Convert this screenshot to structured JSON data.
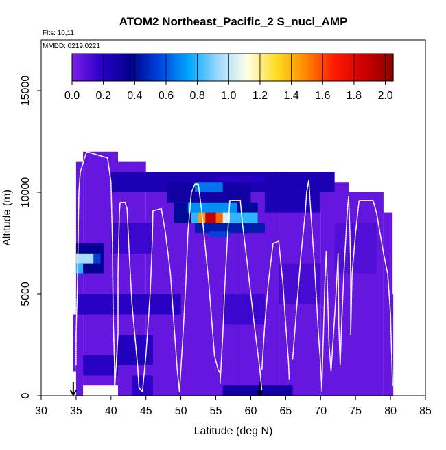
{
  "chart_data": {
    "type": "heatmap",
    "title": "ATOM2 Northeast_Pacific_2 S_nucl_AMP",
    "flights_label": "Flts: 10,11",
    "date_label": "MMDD: 0219,0221",
    "xlabel": "Latitude (deg N)",
    "ylabel": "Altitude (m)",
    "xlim": [
      30,
      85
    ],
    "ylim": [
      0,
      17500
    ],
    "x_ticks": [
      30,
      35,
      40,
      45,
      50,
      55,
      60,
      65,
      70,
      75,
      80,
      85
    ],
    "x_tick_labels": [
      "30",
      "35",
      "40",
      "45",
      "50",
      "55",
      "60",
      "65",
      "70",
      "75",
      "80",
      "85"
    ],
    "y_ticks": [
      0,
      5000,
      10000,
      15000
    ],
    "y_tick_labels": [
      "0",
      "5000",
      "10000",
      "15000"
    ],
    "colorbar": {
      "min": 0.0,
      "max": 2.05,
      "ticks": [
        0.0,
        0.2,
        0.4,
        0.6,
        0.8,
        1.0,
        1.2,
        1.4,
        1.6,
        1.8,
        2.0
      ],
      "tick_labels": [
        "0.0",
        "0.2",
        "0.4",
        "0.6",
        "0.8",
        "1.0",
        "1.2",
        "1.4",
        "1.6",
        "1.8",
        "2.0"
      ],
      "colors": [
        "#7b1fe8",
        "#2b00c8",
        "#00008b",
        "#0044dd",
        "#00a6ff",
        "#9ed8ff",
        "#ffffe8",
        "#ffdd22",
        "#ff8800",
        "#ff1a00",
        "#cc0000",
        "#8b0000"
      ]
    },
    "background_value": 0.05,
    "cell_height_m": 500,
    "coverage": [
      {
        "x0": 35.0,
        "x1": 36.0,
        "y0": 0,
        "y1": 11500
      },
      {
        "x0": 34.6,
        "x1": 35.0,
        "y0": 1200,
        "y1": 4000
      },
      {
        "x0": 36.0,
        "x1": 41.0,
        "y0": 500,
        "y1": 12000
      },
      {
        "x0": 41.0,
        "x1": 45.0,
        "y0": 0,
        "y1": 11500
      },
      {
        "x0": 45.0,
        "x1": 52.0,
        "y0": 0,
        "y1": 11000
      },
      {
        "x0": 52.0,
        "x1": 58.0,
        "y0": 0,
        "y1": 11000
      },
      {
        "x0": 58.0,
        "x1": 64.0,
        "y0": 0,
        "y1": 11000
      },
      {
        "x0": 64.0,
        "x1": 70.0,
        "y0": 0,
        "y1": 10800
      },
      {
        "x0": 70.0,
        "x1": 74.0,
        "y0": 0,
        "y1": 10500
      },
      {
        "x0": 74.0,
        "x1": 79.0,
        "y0": 0,
        "y1": 10000
      },
      {
        "x0": 79.0,
        "x1": 80.3,
        "y0": 0,
        "y1": 9000
      },
      {
        "x0": 80.0,
        "x1": 80.4,
        "y0": 0,
        "y1": 5000
      }
    ],
    "features": [
      {
        "x0": 35.0,
        "x1": 39.0,
        "y0": 6000,
        "y1": 7500,
        "value": 0.35
      },
      {
        "x0": 35.0,
        "x1": 37.5,
        "y0": 6500,
        "y1": 7000,
        "value": 0.95
      },
      {
        "x0": 35.0,
        "x1": 36.0,
        "y0": 6000,
        "y1": 6500,
        "value": 0.8
      },
      {
        "x0": 37.5,
        "x1": 38.5,
        "y0": 6500,
        "y1": 7000,
        "value": 0.55
      },
      {
        "x0": 40.0,
        "x1": 72.0,
        "y0": 10000,
        "y1": 11000,
        "value": 0.25
      },
      {
        "x0": 48.0,
        "x1": 60.0,
        "y0": 9500,
        "y1": 10500,
        "value": 0.3
      },
      {
        "x0": 52.0,
        "x1": 56.0,
        "y0": 10000,
        "y1": 10500,
        "value": 0.65
      },
      {
        "x0": 49.0,
        "x1": 61.0,
        "y0": 8500,
        "y1": 9500,
        "value": 0.4
      },
      {
        "x0": 51.0,
        "x1": 58.0,
        "y0": 9000,
        "y1": 9500,
        "value": 0.7
      },
      {
        "x0": 51.5,
        "x1": 61.0,
        "y0": 8500,
        "y1": 9000,
        "value": 0.8
      },
      {
        "x0": 52.5,
        "x1": 53.5,
        "y0": 8500,
        "y1": 9000,
        "value": 1.45
      },
      {
        "x0": 53.5,
        "x1": 55.0,
        "y0": 8500,
        "y1": 9000,
        "value": 1.9
      },
      {
        "x0": 55.0,
        "x1": 56.0,
        "y0": 8500,
        "y1": 9000,
        "value": 1.55
      },
      {
        "x0": 56.0,
        "x1": 57.0,
        "y0": 8500,
        "y1": 9000,
        "value": 1.05
      },
      {
        "x0": 52.0,
        "x1": 62.0,
        "y0": 8000,
        "y1": 8500,
        "value": 0.45
      },
      {
        "x0": 54.0,
        "x1": 57.0,
        "y0": 7800,
        "y1": 8100,
        "value": 0.55
      },
      {
        "x0": 55.0,
        "x1": 62.0,
        "y0": 10500,
        "y1": 10800,
        "value": 0.2
      },
      {
        "x0": 62.0,
        "x1": 70.0,
        "y0": 9000,
        "y1": 10000,
        "value": 0.25
      },
      {
        "x0": 35.0,
        "x1": 50.0,
        "y0": 4000,
        "y1": 5000,
        "value": 0.2
      },
      {
        "x0": 40.0,
        "x1": 46.0,
        "y0": 7000,
        "y1": 8500,
        "value": 0.15
      },
      {
        "x0": 41.0,
        "x1": 46.0,
        "y0": 1500,
        "y1": 3000,
        "value": 0.22
      },
      {
        "x0": 36.0,
        "x1": 41.0,
        "y0": 1000,
        "y1": 2000,
        "value": 0.2
      },
      {
        "x0": 43.0,
        "x1": 46.0,
        "y0": 0,
        "y1": 1000,
        "value": 0.18
      },
      {
        "x0": 56.0,
        "x1": 66.0,
        "y0": 0,
        "y1": 500,
        "value": 0.3
      },
      {
        "x0": 56.0,
        "x1": 62.0,
        "y0": 3500,
        "y1": 5000,
        "value": 0.15
      },
      {
        "x0": 64.0,
        "x1": 70.0,
        "y0": 4500,
        "y1": 6500,
        "value": 0.12
      },
      {
        "x0": 72.0,
        "x1": 78.0,
        "y0": 6000,
        "y1": 8500,
        "value": 0.1
      }
    ],
    "arrows_at_latitude": [
      34.6,
      61.3
    ],
    "flight_track": [
      [
        [
          35.0,
          1500
        ],
        [
          35.0,
          3000
        ],
        [
          35.2,
          5500
        ],
        [
          35.3,
          8000
        ],
        [
          35.4,
          10000
        ],
        [
          35.6,
          11000
        ],
        [
          36.5,
          12000
        ],
        [
          39.5,
          11700
        ],
        [
          40.0,
          10500
        ],
        [
          40.2,
          7500
        ],
        [
          40.3,
          4000
        ],
        [
          40.5,
          1500
        ],
        [
          40.5,
          200
        ]
      ],
      [
        [
          40.5,
          200
        ],
        [
          41.0,
          3000
        ],
        [
          41.0,
          6000
        ],
        [
          41.2,
          9000
        ],
        [
          41.3,
          9500
        ],
        [
          42.0,
          9500
        ],
        [
          42.3,
          9200
        ],
        [
          42.6,
          7000
        ],
        [
          43.0,
          4500
        ],
        [
          43.8,
          1500
        ],
        [
          44.0,
          400
        ],
        [
          44.5,
          200
        ]
      ],
      [
        [
          44.5,
          200
        ],
        [
          45.0,
          2000
        ],
        [
          45.6,
          5000
        ],
        [
          45.9,
          7500
        ],
        [
          46.0,
          9100
        ],
        [
          47.2,
          9200
        ],
        [
          47.8,
          8000
        ],
        [
          48.5,
          6000
        ],
        [
          49.0,
          3500
        ],
        [
          49.5,
          1200
        ],
        [
          49.8,
          200
        ]
      ],
      [
        [
          49.8,
          200
        ],
        [
          50.3,
          3000
        ],
        [
          50.7,
          5500
        ],
        [
          51.0,
          8000
        ],
        [
          51.5,
          10000
        ],
        [
          52.0,
          10400
        ],
        [
          52.5,
          10400
        ],
        [
          53.0,
          9000
        ],
        [
          54.0,
          5500
        ],
        [
          54.8,
          2000
        ],
        [
          55.3,
          1300
        ],
        [
          55.6,
          1100
        ]
      ],
      [
        [
          55.6,
          600
        ],
        [
          56.0,
          3000
        ],
        [
          56.3,
          5500
        ],
        [
          56.7,
          8000
        ],
        [
          57.0,
          9600
        ],
        [
          58.5,
          9600
        ],
        [
          58.8,
          8500
        ],
        [
          59.5,
          6500
        ],
        [
          60.5,
          3500
        ],
        [
          61.3,
          1300
        ],
        [
          61.6,
          200
        ]
      ],
      [
        [
          61.6,
          1300
        ],
        [
          62.0,
          3500
        ],
        [
          62.5,
          5500
        ],
        [
          63.2,
          7500
        ],
        [
          64.0,
          7600
        ],
        [
          64.6,
          5500
        ],
        [
          65.0,
          3500
        ],
        [
          65.4,
          1700
        ],
        [
          65.5,
          800
        ]
      ],
      [
        [
          66.0,
          1800
        ],
        [
          66.5,
          4000
        ],
        [
          67.2,
          7000
        ],
        [
          67.8,
          9000
        ],
        [
          68.0,
          10000
        ],
        [
          68.3,
          10600
        ],
        [
          68.6,
          9000
        ],
        [
          69.2,
          6000
        ],
        [
          69.7,
          3000
        ],
        [
          70.0,
          1500
        ],
        [
          70.2,
          200
        ]
      ],
      [
        [
          70.2,
          700
        ],
        [
          70.4,
          3000
        ],
        [
          70.6,
          5500
        ],
        [
          70.8,
          7100
        ],
        [
          71.0,
          5000
        ],
        [
          71.2,
          2500
        ],
        [
          71.5,
          1200
        ],
        [
          71.8,
          2800
        ],
        [
          72.2,
          5000
        ],
        [
          72.5,
          7000
        ]
      ],
      [
        [
          72.5,
          7000
        ],
        [
          72.6,
          3500
        ],
        [
          72.8,
          1500
        ],
        [
          73.0,
          3500
        ],
        [
          73.4,
          6500
        ],
        [
          73.8,
          9000
        ],
        [
          74.0,
          9800
        ],
        [
          74.2,
          8000
        ],
        [
          74.3,
          6000
        ],
        [
          74.3,
          3000
        ],
        [
          74.5,
          6000
        ],
        [
          75.0,
          8000
        ],
        [
          75.5,
          9600
        ],
        [
          77.5,
          9600
        ],
        [
          78.0,
          9000
        ],
        [
          79.0,
          7000
        ],
        [
          79.6,
          6000
        ],
        [
          80.0,
          4000
        ],
        [
          80.3,
          500
        ]
      ]
    ]
  }
}
